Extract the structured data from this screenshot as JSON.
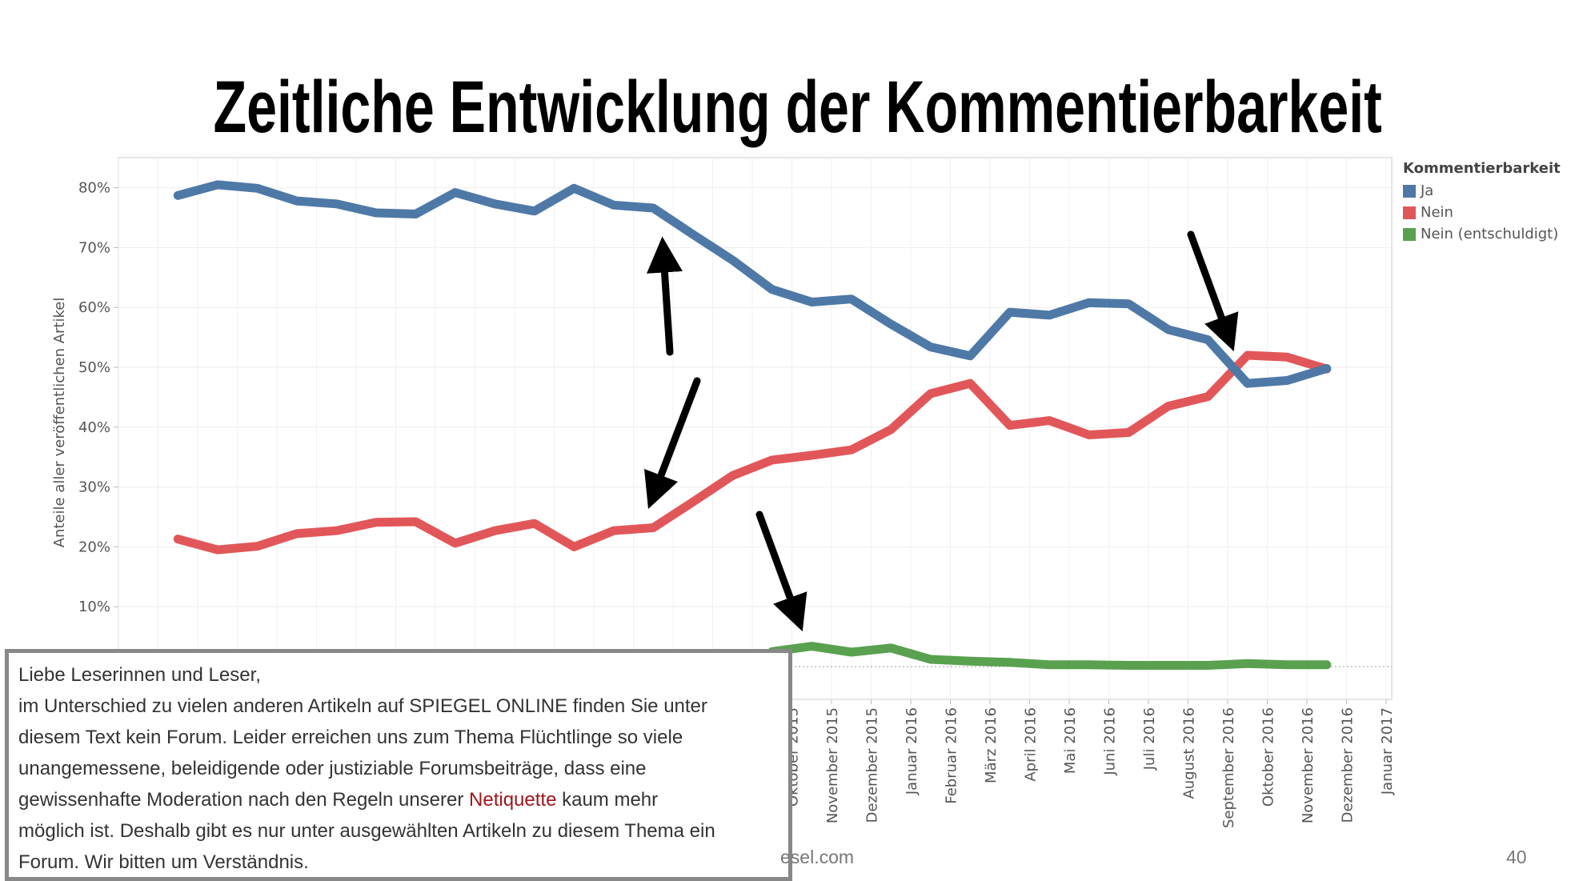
{
  "title": "Zeitliche Entwicklung der Kommentierbarkeit",
  "chart_data": {
    "type": "line",
    "title": "Zeitliche Entwicklung der Kommentierbarkeit",
    "ylabel": "Anteile aller veröffentlichen Artikel",
    "xlabel": "",
    "ylim": [
      0,
      85
    ],
    "yticks": [
      "10%",
      "20%",
      "30%",
      "40%",
      "50%",
      "60%",
      "70%",
      "80%"
    ],
    "xtick_labels_visible": [
      "Oktober 2015",
      "November 2015",
      "Dezember 2015",
      "Januar 2016",
      "Februar 2016",
      "März 2016",
      "April 2016",
      "Mai 2016",
      "Juni 2016",
      "Juli 2016",
      "August 2016",
      "September 2016",
      "Oktober 2016",
      "November 2016",
      "Dezember 2016",
      "Januar 2017"
    ],
    "grid": true,
    "legend_placement": "right",
    "legend_title": "Kommentierbarkeit",
    "x": [
      "2014-06",
      "2014-07",
      "2014-08",
      "2014-09",
      "2014-10",
      "2014-11",
      "2014-12",
      "2015-01",
      "2015-02",
      "2015-03",
      "2015-04",
      "2015-05",
      "2015-06",
      "2015-07",
      "2015-08",
      "2015-09",
      "2015-10",
      "2015-11",
      "2015-12",
      "2016-01",
      "2016-02",
      "2016-03",
      "2016-04",
      "2016-05",
      "2016-06",
      "2016-07",
      "2016-08",
      "2016-09",
      "2016-10",
      "2016-11"
    ],
    "series": [
      {
        "name": "Ja",
        "color": "#4e79a7",
        "values": [
          78.7,
          80.5,
          79.9,
          77.8,
          77.3,
          75.8,
          75.6,
          79.2,
          77.3,
          76.1,
          79.9,
          77.1,
          76.6,
          72.2,
          67.9,
          63.0,
          60.9,
          61.4,
          57.2,
          53.4,
          51.9,
          59.2,
          58.7,
          60.8,
          60.6,
          56.3,
          54.6,
          47.3,
          47.8,
          49.8
        ]
      },
      {
        "name": "Nein",
        "color": "#e15759",
        "values": [
          21.3,
          19.5,
          20.1,
          22.2,
          22.7,
          24.1,
          24.2,
          20.6,
          22.7,
          23.9,
          20.0,
          22.7,
          23.2,
          27.5,
          31.9,
          34.5,
          35.3,
          36.2,
          39.6,
          45.6,
          47.3,
          40.3,
          41.1,
          38.7,
          39.1,
          43.5,
          45.1,
          52.0,
          51.7,
          49.7
        ]
      },
      {
        "name": "Nein (entschuldigt)",
        "color": "#59a14f",
        "values": [
          null,
          null,
          null,
          null,
          null,
          null,
          null,
          null,
          null,
          null,
          null,
          null,
          null,
          null,
          null,
          2.5,
          3.4,
          2.4,
          3.1,
          1.2,
          0.9,
          0.7,
          0.3,
          0.3,
          0.2,
          0.2,
          0.2,
          0.5,
          0.3,
          0.3
        ]
      }
    ]
  },
  "notice": {
    "lines": [
      "Liebe Leserinnen und Leser,",
      "im Unterschied zu vielen anderen Artikeln auf SPIEGEL ONLINE finden Sie unter",
      "diesem Text kein Forum. Leider erreichen uns zum Thema Flüchtlinge so viele",
      "unangemessene, beleidigende oder justiziable Forumsbeiträge, dass eine"
    ],
    "line5_before": "gewissenhafte Moderation nach den Regeln unserer ",
    "line5_link": "Netiquette",
    "line5_after": " kaum mehr",
    "line6": "möglich ist. Deshalb gibt es nur unter ausgewählten Artikeln zu diesem Thema ein",
    "line7": "Forum. Wir bitten um Verständnis."
  },
  "footer": {
    "site_partial": "esel.com",
    "page_number": "40"
  }
}
